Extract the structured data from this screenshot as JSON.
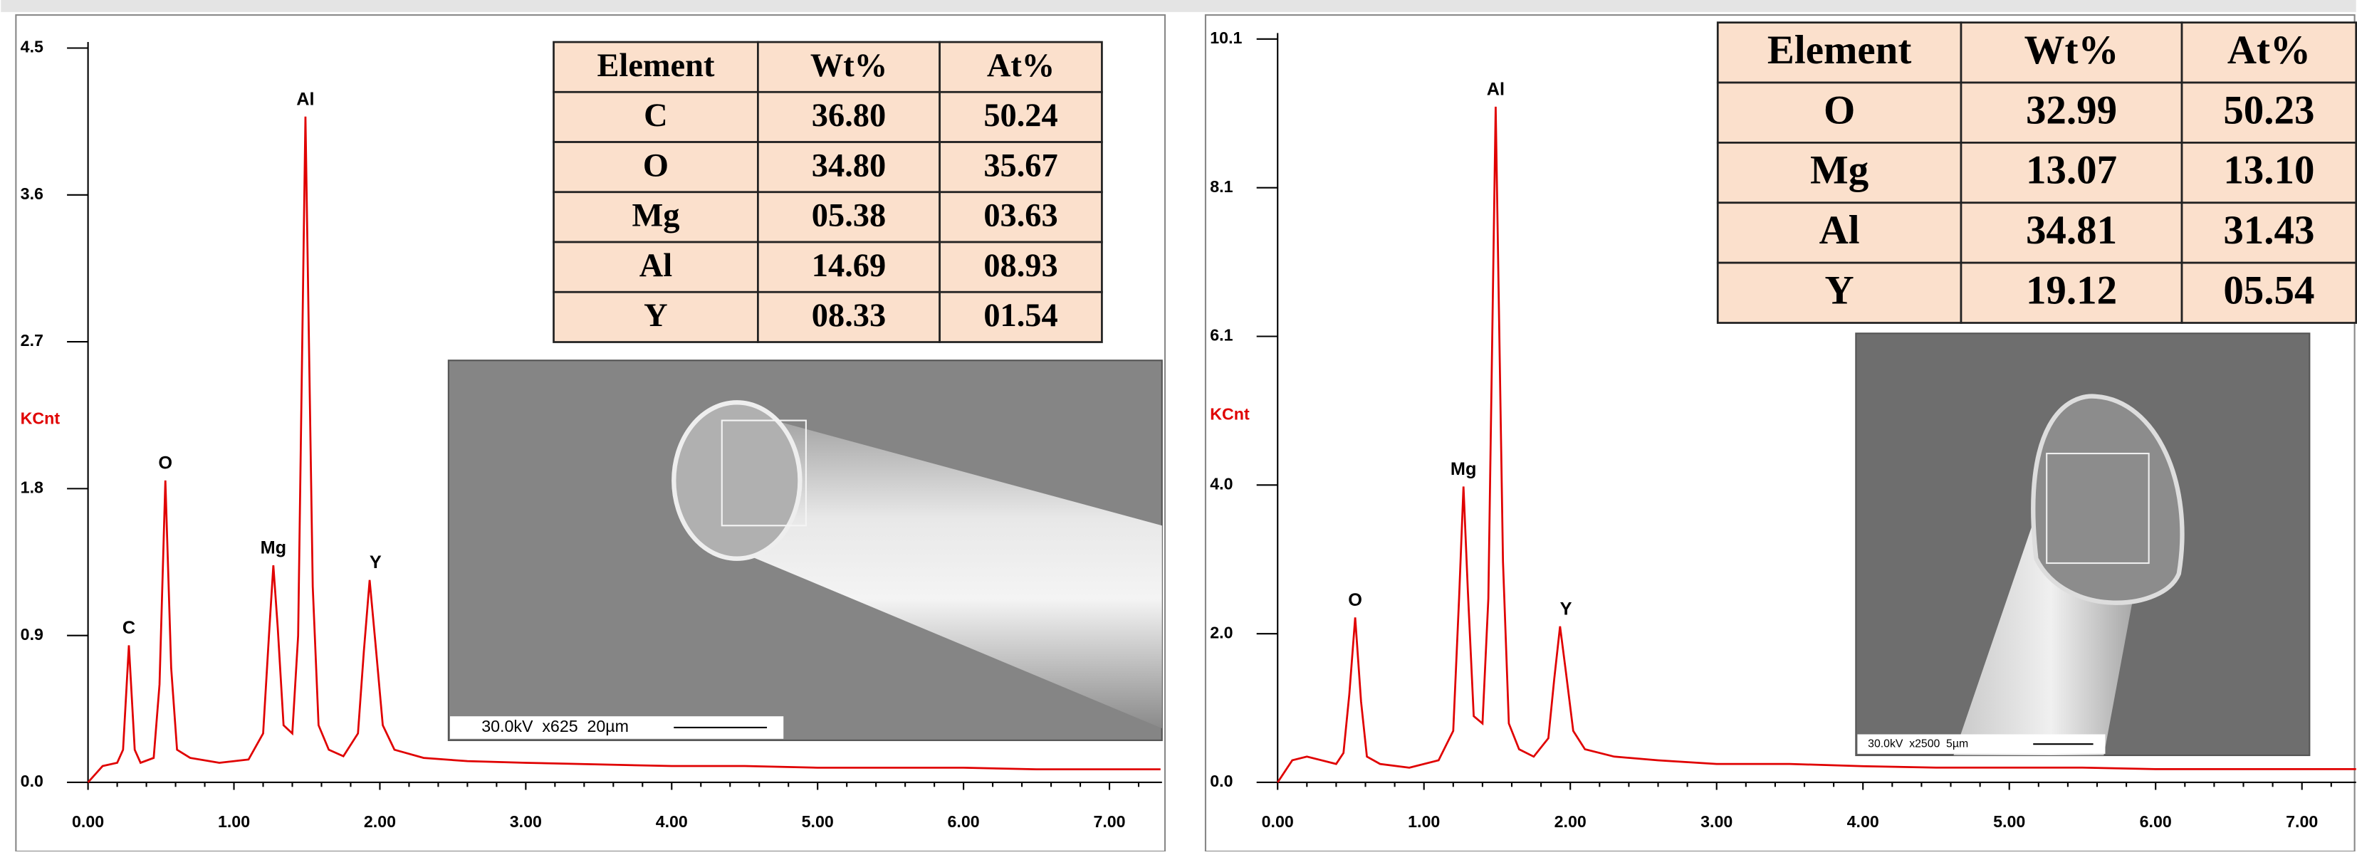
{
  "chart_data": [
    {
      "type": "line",
      "ylabel": "KCnt",
      "color": "#e00000",
      "x": [
        0.0,
        0.05,
        0.1,
        0.2,
        0.24,
        0.28,
        0.32,
        0.36,
        0.45,
        0.49,
        0.53,
        0.57,
        0.61,
        0.7,
        0.9,
        1.1,
        1.2,
        1.24,
        1.27,
        1.3,
        1.34,
        1.4,
        1.44,
        1.49,
        1.54,
        1.58,
        1.65,
        1.75,
        1.85,
        1.89,
        1.93,
        1.97,
        2.02,
        2.1,
        2.3,
        2.6,
        3.0,
        3.5,
        4.0,
        4.5,
        5.0,
        5.5,
        6.0,
        6.5,
        7.0,
        7.35
      ],
      "values": [
        0.0,
        0.05,
        0.1,
        0.12,
        0.2,
        0.84,
        0.2,
        0.12,
        0.15,
        0.6,
        1.85,
        0.7,
        0.2,
        0.15,
        0.12,
        0.14,
        0.3,
        0.9,
        1.33,
        0.95,
        0.35,
        0.3,
        0.9,
        4.08,
        1.2,
        0.35,
        0.2,
        0.16,
        0.3,
        0.8,
        1.24,
        0.85,
        0.35,
        0.2,
        0.15,
        0.13,
        0.12,
        0.11,
        0.1,
        0.1,
        0.09,
        0.09,
        0.09,
        0.08,
        0.08,
        0.08
      ],
      "xlim": [
        0,
        7.36
      ],
      "ylim": [
        0,
        4.5
      ],
      "xticks": [
        {
          "value": 0,
          "label": "0.00"
        },
        {
          "value": 1,
          "label": "1.00"
        },
        {
          "value": 2,
          "label": "2.00"
        },
        {
          "value": 3,
          "label": "3.00"
        },
        {
          "value": 4,
          "label": "4.00"
        },
        {
          "value": 5,
          "label": "5.00"
        },
        {
          "value": 6,
          "label": "6.00"
        },
        {
          "value": 7,
          "label": "7.00"
        }
      ],
      "yticks": [
        {
          "value": 0,
          "label": "0.0"
        },
        0.9,
        1.8,
        2.7,
        3.6,
        4.5
      ],
      "annotations": [
        {
          "text": "C",
          "x": 0.28,
          "y": 0.84
        },
        {
          "text": "O",
          "x": 0.53,
          "y": 1.85
        },
        {
          "text": "Mg",
          "x": 1.27,
          "y": 1.33
        },
        {
          "text": "Al",
          "x": 1.49,
          "y": 4.08
        },
        {
          "text": "Y",
          "x": 1.97,
          "y": 1.24
        }
      ],
      "table": {
        "columns": [
          "Element",
          "Wt%",
          "At%"
        ],
        "rows": [
          [
            "C",
            "36.80",
            "50.24"
          ],
          [
            "O",
            "34.80",
            "35.67"
          ],
          [
            "Mg",
            "05.38",
            "03.63"
          ],
          [
            "Al",
            "14.69",
            "08.93"
          ],
          [
            "Y",
            "08.33",
            "01.54"
          ]
        ]
      },
      "image_caption": "30.0kV  x625  20µm"
    },
    {
      "type": "line",
      "ylabel": "KCnt",
      "color": "#e00000",
      "x": [
        0.0,
        0.1,
        0.2,
        0.3,
        0.4,
        0.45,
        0.49,
        0.53,
        0.57,
        0.61,
        0.7,
        0.9,
        1.1,
        1.2,
        1.24,
        1.27,
        1.3,
        1.34,
        1.4,
        1.44,
        1.49,
        1.54,
        1.58,
        1.65,
        1.75,
        1.85,
        1.89,
        1.93,
        1.97,
        2.02,
        2.1,
        2.3,
        2.6,
        3.0,
        3.5,
        4.0,
        4.5,
        5.0,
        5.5,
        6.0,
        6.5,
        7.0,
        7.37
      ],
      "values": [
        0.0,
        0.3,
        0.35,
        0.3,
        0.25,
        0.4,
        1.2,
        2.24,
        1.1,
        0.35,
        0.25,
        0.2,
        0.3,
        0.7,
        2.5,
        4.02,
        2.6,
        0.9,
        0.8,
        2.5,
        9.18,
        3.0,
        0.8,
        0.45,
        0.35,
        0.6,
        1.4,
        2.12,
        1.5,
        0.7,
        0.45,
        0.35,
        0.3,
        0.25,
        0.25,
        0.22,
        0.2,
        0.2,
        0.2,
        0.18,
        0.18,
        0.18,
        0.18
      ],
      "xlim": [
        0,
        7.37
      ],
      "ylim": [
        0,
        10.1
      ],
      "xticks": [
        {
          "value": 0,
          "label": "0.00"
        },
        {
          "value": 1,
          "label": "1.00"
        },
        {
          "value": 2,
          "label": "2.00"
        },
        {
          "value": 3,
          "label": "3.00"
        },
        {
          "value": 4,
          "label": "4.00"
        },
        {
          "value": 5,
          "label": "5.00"
        },
        {
          "value": 6,
          "label": "6.00"
        },
        {
          "value": 7,
          "label": "7.00"
        }
      ],
      "yticks": [
        {
          "value": 0,
          "label": "0.0"
        },
        {
          "value": 2.02,
          "label": "2.0"
        },
        {
          "value": 4.04,
          "label": "4.0"
        },
        {
          "value": 6.06,
          "label": "6.1"
        },
        {
          "value": 8.08,
          "label": "8.1"
        },
        10.1
      ],
      "annotations": [
        {
          "text": "O",
          "x": 0.53,
          "y": 2.24
        },
        {
          "text": "Mg",
          "x": 1.27,
          "y": 4.02
        },
        {
          "text": "Al",
          "x": 1.49,
          "y": 9.18
        },
        {
          "text": "Y",
          "x": 1.97,
          "y": 2.12
        }
      ],
      "table": {
        "columns": [
          "Element",
          "Wt%",
          "At%"
        ],
        "rows": [
          [
            "O",
            "32.99",
            "50.23"
          ],
          [
            "Mg",
            "13.07",
            "13.10"
          ],
          [
            "Al",
            "34.81",
            "31.43"
          ],
          [
            "Y",
            "19.12",
            "05.54"
          ]
        ]
      },
      "image_caption": "30.0kV  x2500  5µm"
    }
  ]
}
